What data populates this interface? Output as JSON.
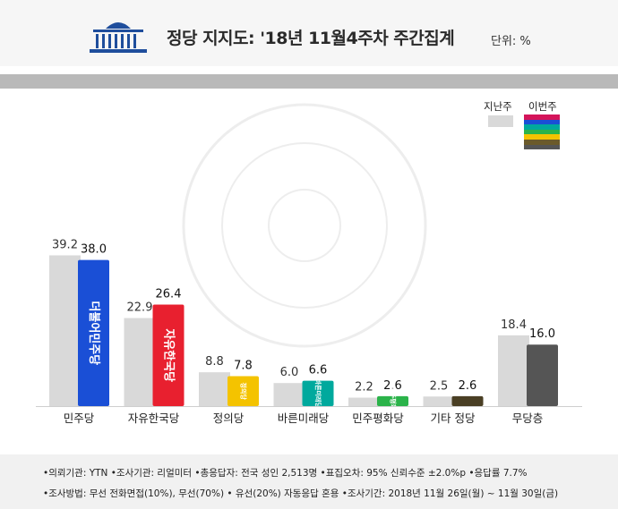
{
  "header": {
    "title": "정당 지지도: '18년 11월4주차 주간집계",
    "unit": "단위: %"
  },
  "legend": {
    "previous_label": "지난주",
    "current_label": "이번주",
    "current_stripe_colors": [
      "#d4145a",
      "#1a4fd6",
      "#00a99d",
      "#2bb34a",
      "#f4c300",
      "#6b5a2a",
      "#555555"
    ]
  },
  "chart_data": {
    "type": "bar",
    "title": "정당 지지도: '18년 11월4주차 주간집계",
    "unit": "%",
    "categories": [
      "민주당",
      "자유한국당",
      "정의당",
      "바른미래당",
      "민주평화당",
      "기타 정당",
      "무당층"
    ],
    "series": [
      {
        "name": "지난주",
        "values": [
          39.2,
          22.9,
          8.8,
          6.0,
          2.2,
          2.5,
          18.4
        ],
        "labels": [
          "39.2",
          "22.9",
          "8.8",
          "6.0",
          "2.2",
          "2.5",
          "18.4"
        ],
        "color": "#d9d9d9"
      },
      {
        "name": "이번주",
        "values": [
          38.0,
          26.4,
          7.8,
          6.6,
          2.6,
          2.6,
          16.0
        ],
        "labels": [
          "38.0",
          "26.4",
          "7.8",
          "6.6",
          "2.6",
          "2.6",
          "16.0"
        ],
        "colors": [
          "#1a4fd6",
          "#e8202f",
          "#f4c300",
          "#00a99d",
          "#2bb34a",
          "#4a3f24",
          "#555555"
        ]
      }
    ],
    "bar_logos": [
      "더불어민주당",
      "자유한국당",
      "정의당",
      "바른미래당",
      "민주평화당",
      "",
      ""
    ],
    "grid": false,
    "legend_position": "top-right"
  },
  "footer": {
    "line1": "•의뢰기관: YTN  •조사기관: 리얼미터  •총응답자: 전국 성인 2,513명  •표집오차: 95% 신뢰수준 ±2.0%p  •응답률 7.7%",
    "line2": "•조사방법: 무선 전화면접(10%), 무선(70%) • 유선(20%) 자동응답 혼용  •조사기간: 2018년 11월 26일(월) ~ 11월 30일(금)"
  }
}
